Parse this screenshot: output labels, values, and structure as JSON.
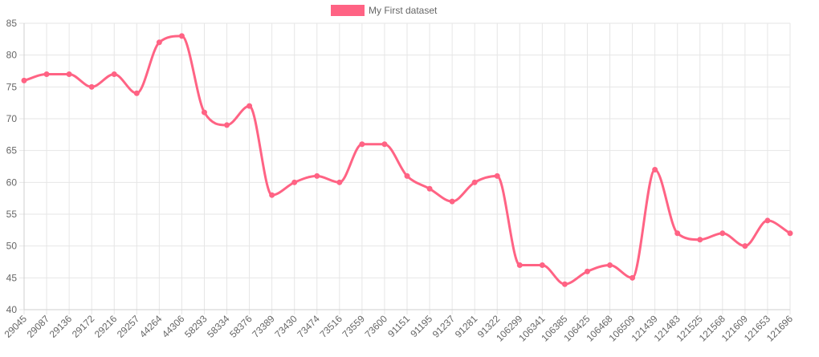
{
  "colors": {
    "series": "#ff6384",
    "grid": "#e6e6e6",
    "text": "#666666"
  },
  "chart_data": {
    "type": "line",
    "title": "",
    "xlabel": "",
    "ylabel": "",
    "ylim": [
      40,
      85
    ],
    "yticks": [
      40,
      45,
      50,
      55,
      60,
      65,
      70,
      75,
      80,
      85
    ],
    "grid": true,
    "legend_position": "top",
    "categories": [
      "29045",
      "29087",
      "29136",
      "29172",
      "29216",
      "29257",
      "44264",
      "44306",
      "58293",
      "58334",
      "58376",
      "73389",
      "73430",
      "73474",
      "73516",
      "73559",
      "73600",
      "91151",
      "91195",
      "91237",
      "91281",
      "91322",
      "106299",
      "106341",
      "106385",
      "106425",
      "106468",
      "106509",
      "121439",
      "121483",
      "121525",
      "121568",
      "121609",
      "121653",
      "121696"
    ],
    "series": [
      {
        "name": "My First dataset",
        "color": "#ff6384",
        "values": [
          76,
          77,
          77,
          75,
          77,
          74,
          82,
          83,
          71,
          69,
          72,
          58,
          60,
          61,
          60,
          66,
          66,
          61,
          59,
          57,
          60,
          61,
          47,
          47,
          44,
          46,
          47,
          45,
          62,
          52,
          51,
          52,
          50,
          54,
          52
        ]
      }
    ]
  }
}
